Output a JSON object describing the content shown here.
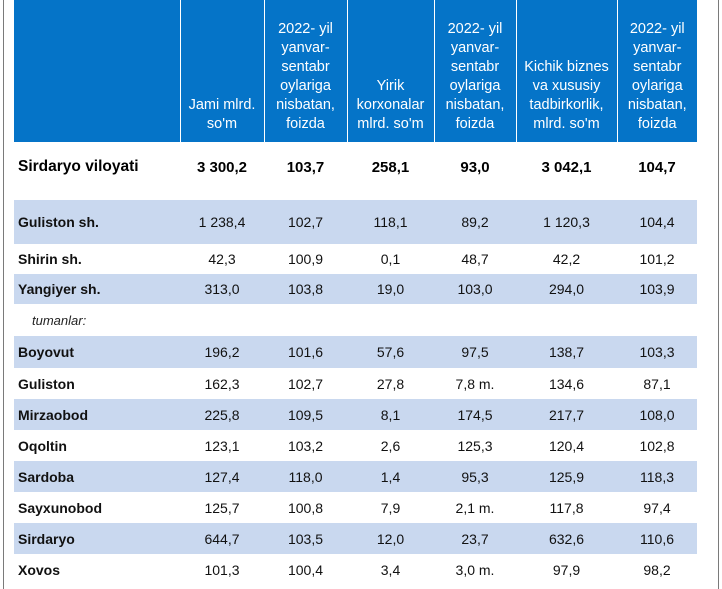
{
  "header": [
    "",
    "Jami mlrd. so'm",
    "2022- yil yanvar-sentabr oylariga nisbatan, foizda",
    "Yirik korxonalar mlrd. so'm",
    "2022- yil yanvar-sentabr oylariga nisbatan, foizda",
    "Kichik biznes va xususiy tadbirkorlik, mlrd. so'm",
    "2022- yil yanvar-sentabr oylariga nisbatan, foizda"
  ],
  "total": [
    "Sirdaryo viloyati",
    "3 300,2",
    "103,7",
    "258,1",
    "93,0",
    "3 042,1",
    "104,7"
  ],
  "cities": [
    [
      "Guliston  sh.",
      "1 238,4",
      "102,7",
      "118,1",
      "89,2",
      "1 120,3",
      "104,4"
    ],
    [
      "Shirin sh.",
      "42,3",
      "100,9",
      "0,1",
      "48,7",
      "42,2",
      "101,2"
    ],
    [
      "Yangiyer sh.",
      "313,0",
      "103,8",
      "19,0",
      "103,0",
      "294,0",
      "103,9"
    ]
  ],
  "subheading": "tumanlar:",
  "districts": [
    [
      "Boyovut",
      "196,2",
      "101,6",
      "57,6",
      "97,5",
      "138,7",
      "103,3"
    ],
    [
      "Guliston",
      "162,3",
      "102,7",
      "27,8",
      "7,8 m.",
      "134,6",
      "87,1"
    ],
    [
      "Mirzaobod",
      "225,8",
      "109,5",
      "8,1",
      "174,5",
      "217,7",
      "108,0"
    ],
    [
      "Oqoltin",
      "123,1",
      "103,2",
      "2,6",
      "125,3",
      "120,4",
      "102,8"
    ],
    [
      "Sardoba",
      "127,4",
      "118,0",
      "1,4",
      "95,3",
      "125,9",
      "118,3"
    ],
    [
      "Sayxunobod",
      "125,7",
      "100,8",
      "7,9",
      "2,1 m.",
      "117,8",
      "97,4"
    ],
    [
      "Sirdaryo",
      "644,7",
      "103,5",
      "12,0",
      "23,7",
      "632,6",
      "110,6"
    ],
    [
      "Xovos",
      "101,3",
      "100,4",
      "3,4",
      "3,0 m.",
      "97,9",
      "98,2"
    ]
  ]
}
